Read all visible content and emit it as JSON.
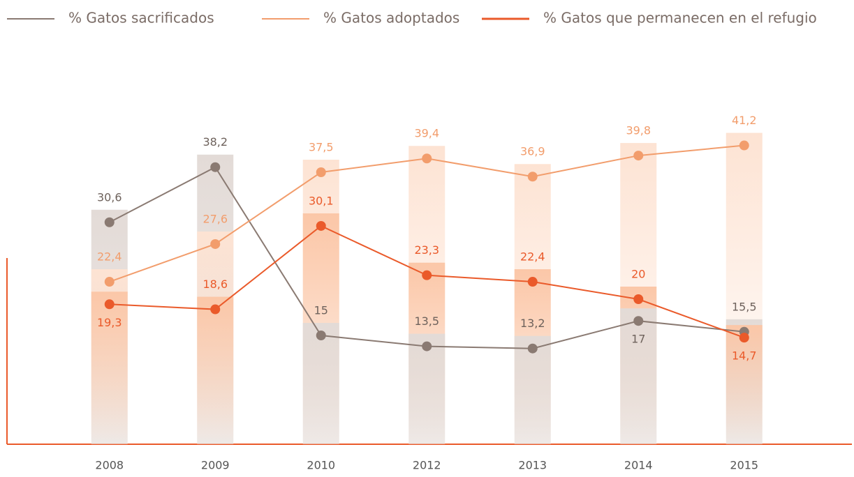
{
  "chart_data": {
    "type": "line",
    "categories": [
      "2008",
      "2009",
      "2010",
      "2012",
      "2013",
      "2014",
      "2015"
    ],
    "series": [
      {
        "name": "% Gatos sacrificados",
        "color": "#8a7a72",
        "bar_color": "#e3dbd7",
        "values": [
          30.6,
          38.2,
          15,
          13.5,
          13.2,
          17,
          15.5
        ],
        "value_labels": [
          "30,6",
          "38,2",
          "15",
          "13,5",
          "13,2",
          "17",
          "15,5"
        ]
      },
      {
        "name": "% Gatos adoptados",
        "color": "#f29d6c",
        "bar_color": "#fde3d3",
        "values": [
          22.4,
          27.6,
          37.5,
          39.4,
          36.9,
          39.8,
          41.2
        ],
        "value_labels": [
          "22,4",
          "27,6",
          "37,5",
          "39,4",
          "36,9",
          "39,8",
          "41,2"
        ]
      },
      {
        "name": "% Gatos que permanecen en el refugio",
        "color": "#ea5a2a",
        "bar_color": "#fbc7a8",
        "values": [
          19.3,
          18.6,
          30.1,
          23.3,
          22.4,
          20,
          14.7
        ],
        "value_labels": [
          "19,3",
          "18,6",
          "30,1",
          "23,3",
          "22,4",
          "20",
          "14,7"
        ]
      }
    ],
    "ylim": [
      0,
      45
    ]
  }
}
